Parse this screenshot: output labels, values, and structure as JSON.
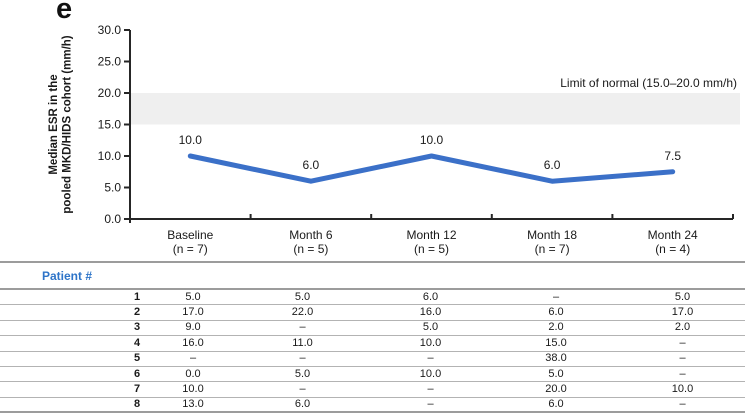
{
  "panel_label": "e",
  "chart_data": {
    "type": "line",
    "ylabel_lines": [
      "Median ESR in the",
      "pooled MKD/HIDS cohort (mm/h)"
    ],
    "xlabel": "",
    "categories": [
      "Baseline",
      "Month 6",
      "Month 12",
      "Month 18",
      "Month 24"
    ],
    "category_sublabels": [
      "(n = 7)",
      "(n = 5)",
      "(n = 5)",
      "(n = 7)",
      "(n = 4)"
    ],
    "values": [
      10.0,
      6.0,
      10.0,
      6.0,
      7.5
    ],
    "point_labels": [
      "10.0",
      "6.0",
      "10.0",
      "6.0",
      "7.5"
    ],
    "ylim": [
      0,
      30
    ],
    "ytick_values": [
      0,
      5,
      10,
      15,
      20,
      25,
      30
    ],
    "ytick_labels": [
      "0.0",
      "5.0",
      "10.0",
      "15.0",
      "20.0",
      "25.0",
      "30.0"
    ],
    "grid": false,
    "legend_position": "none",
    "line_color": "#3b70c8",
    "axis_color": "#262626",
    "normal_band": {
      "min": 15.0,
      "max": 20.0,
      "label": "Limit of normal (15.0–20.0 mm/h)",
      "color": "#efefef"
    }
  },
  "table": {
    "header": "Patient #",
    "header_color": "#2e74c8",
    "rows": [
      {
        "patient": "1",
        "values": [
          "5.0",
          "5.0",
          "6.0",
          "–",
          "5.0"
        ]
      },
      {
        "patient": "2",
        "values": [
          "17.0",
          "22.0",
          "16.0",
          "6.0",
          "17.0"
        ]
      },
      {
        "patient": "3",
        "values": [
          "9.0",
          "–",
          "5.0",
          "2.0",
          "2.0"
        ]
      },
      {
        "patient": "4",
        "values": [
          "16.0",
          "11.0",
          "10.0",
          "15.0",
          "–"
        ]
      },
      {
        "patient": "5",
        "values": [
          "–",
          "–",
          "–",
          "38.0",
          "–"
        ]
      },
      {
        "patient": "6",
        "values": [
          "0.0",
          "5.0",
          "10.0",
          "5.0",
          "–"
        ]
      },
      {
        "patient": "7",
        "values": [
          "10.0",
          "–",
          "–",
          "20.0",
          "10.0"
        ]
      },
      {
        "patient": "8",
        "values": [
          "13.0",
          "6.0",
          "–",
          "6.0",
          "–"
        ]
      }
    ]
  }
}
